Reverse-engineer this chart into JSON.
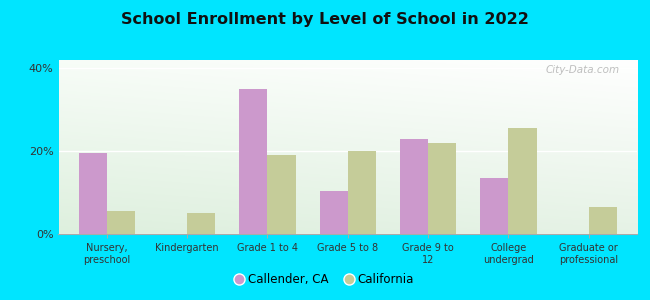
{
  "title": "School Enrollment by Level of School in 2022",
  "categories": [
    "Nursery,\npreschool",
    "Kindergarten",
    "Grade 1 to 4",
    "Grade 5 to 8",
    "Grade 9 to\n12",
    "College\nundergrad",
    "Graduate or\nprofessional"
  ],
  "callender_values": [
    19.5,
    0,
    35.0,
    10.5,
    23.0,
    13.5,
    0
  ],
  "california_values": [
    5.5,
    5.0,
    19.0,
    20.0,
    22.0,
    25.5,
    6.5
  ],
  "callender_color": "#cc99cc",
  "california_color": "#c5cc99",
  "background_outer": "#00e5ff",
  "grad_color_topleft": "#e8f5e0",
  "grad_color_topright": "#f8fffe",
  "grad_color_bottomleft": "#d0eec0",
  "grad_color_bottomright": "#f0faf8",
  "ylim": [
    0,
    42
  ],
  "yticks": [
    0,
    20,
    40
  ],
  "ytick_labels": [
    "0%",
    "20%",
    "40%"
  ],
  "bar_width": 0.35,
  "legend_label1": "Callender, CA",
  "legend_label2": "California",
  "watermark": "City-Data.com"
}
